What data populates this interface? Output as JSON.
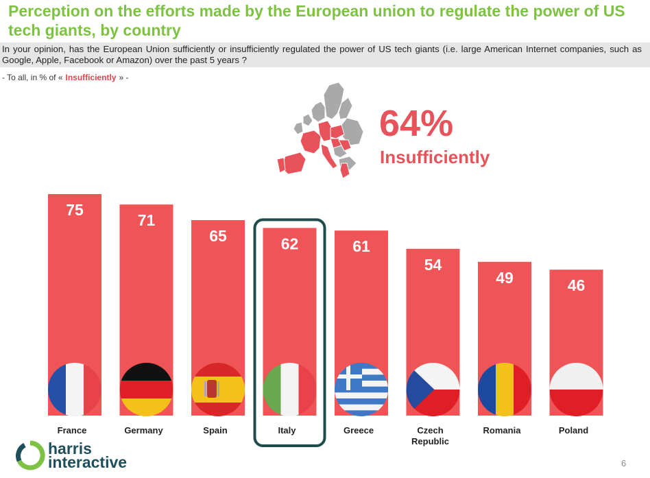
{
  "title": "Perception on the efforts made by the European union to regulate the power of US tech giants, by country",
  "question": "In your opinion, has the European Union sufficiently or insufficiently regulated the power of US tech giants (i.e. large American Internet companies, such as Google, Apple, Facebook or Amazon) over the past 5 years ?",
  "subnote": {
    "prefix": "- To all, in % of «",
    "highlight": "Insufficiently",
    "suffix": "» -"
  },
  "kpi": {
    "value": "64%",
    "label": "Insufficiently"
  },
  "logo": {
    "line1": "harris",
    "line2": "interactive"
  },
  "page_number": "6",
  "colors": {
    "bar": "#ef5457",
    "title": "#7dc242",
    "highlight_box": "#1e4c4a"
  },
  "chart_data": {
    "type": "bar",
    "categories": [
      "France",
      "Germany",
      "Spain",
      "Italy",
      "Greece",
      "Czech Republic",
      "Romania",
      "Poland"
    ],
    "category_lines": [
      [
        "France"
      ],
      [
        "Germany"
      ],
      [
        "Spain"
      ],
      [
        "Italy"
      ],
      [
        "Greece"
      ],
      [
        "Czech",
        "Republic"
      ],
      [
        "Romania"
      ],
      [
        "Poland"
      ]
    ],
    "values": [
      75,
      71,
      65,
      62,
      61,
      54,
      49,
      46
    ],
    "flags": [
      "france-flag-icon",
      "germany-flag-icon",
      "spain-flag-icon",
      "italy-flag-icon",
      "greece-flag-icon",
      "czech-republic-flag-icon",
      "romania-flag-icon",
      "poland-flag-icon"
    ],
    "highlighted": "Italy",
    "ylim": [
      0,
      100
    ],
    "grid": false,
    "legend": "none"
  }
}
